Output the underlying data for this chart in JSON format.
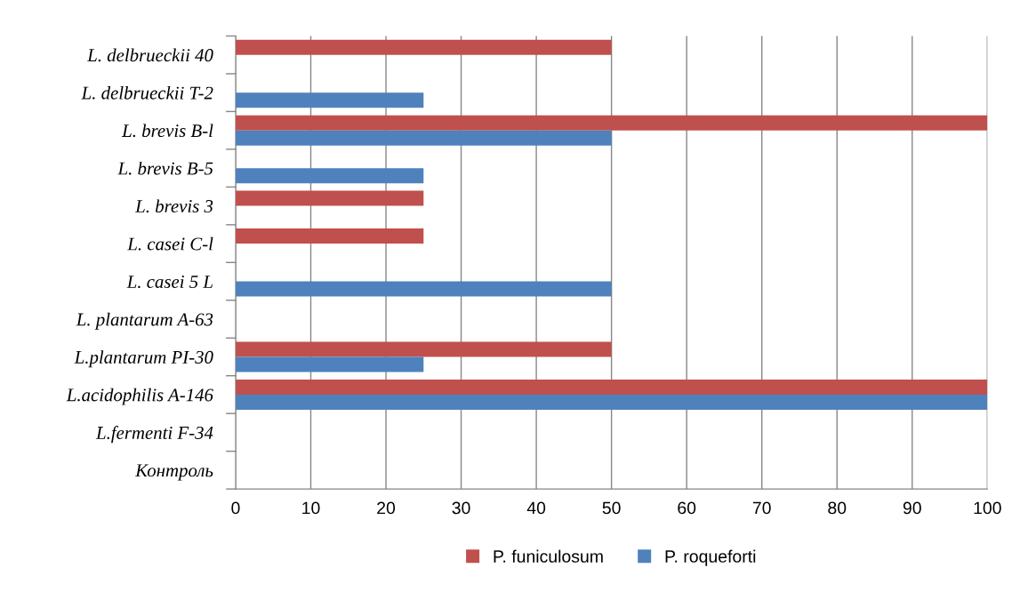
{
  "chart_data": {
    "type": "bar",
    "orientation": "horizontal",
    "categories": [
      "L. delbrueckii 40",
      "L. delbrueckii T-2",
      "L. brevis B-l",
      "L. brevis B-5",
      "L. brevis 3",
      "L. casei C-l",
      "L. casei 5 L",
      "L. plantarum A-63",
      "L.plantarum PI-30",
      "L.acidophilis A-146",
      "L.fermenti F-34",
      "Контроль"
    ],
    "series": [
      {
        "name": "P. funiculosum",
        "color": "#c0504d",
        "values": [
          50,
          0,
          100,
          0,
          25,
          25,
          0,
          0,
          50,
          100,
          0,
          0
        ]
      },
      {
        "name": "P. roqueforti",
        "color": "#4f81bd",
        "values": [
          0,
          25,
          50,
          25,
          0,
          0,
          50,
          0,
          25,
          100,
          0,
          0
        ]
      }
    ],
    "xlim": [
      0,
      100
    ],
    "xticks": [
      0,
      10,
      20,
      30,
      40,
      50,
      60,
      70,
      80,
      90,
      100
    ],
    "grid": "x",
    "legend": "bottom"
  }
}
